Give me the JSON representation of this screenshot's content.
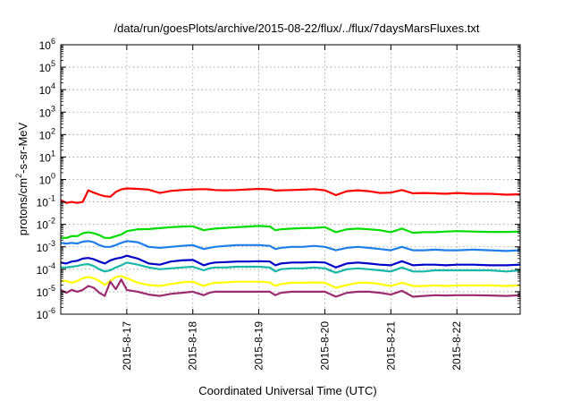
{
  "chart_data": {
    "type": "line",
    "title": "/data/run/goesPlots/archive/2015-08-22/flux/../flux/7daysMarsFluxes.txt",
    "xlabel": "Coordinated Universal Time (UTC)",
    "ylabel_main": "protons/cm",
    "ylabel_sup": "2",
    "ylabel_tail": "-s-sr-MeV",
    "yscale": "log",
    "ylim": [
      1e-06,
      1000000.0
    ],
    "y_ticks": [
      {
        "mantissa": "10",
        "exp": "-6",
        "value": 1e-06
      },
      {
        "mantissa": "10",
        "exp": "-5",
        "value": 1e-05
      },
      {
        "mantissa": "10",
        "exp": "-4",
        "value": 0.0001
      },
      {
        "mantissa": "10",
        "exp": "-3",
        "value": 0.001
      },
      {
        "mantissa": "10",
        "exp": "-2",
        "value": 0.01
      },
      {
        "mantissa": "10",
        "exp": "-1",
        "value": 0.1
      },
      {
        "mantissa": "10",
        "exp": "0",
        "value": 1
      },
      {
        "mantissa": "10",
        "exp": "1",
        "value": 10
      },
      {
        "mantissa": "10",
        "exp": "2",
        "value": 100
      },
      {
        "mantissa": "10",
        "exp": "3",
        "value": 1000
      },
      {
        "mantissa": "10",
        "exp": "4",
        "value": 10000
      },
      {
        "mantissa": "10",
        "exp": "5",
        "value": 100000
      },
      {
        "mantissa": "10",
        "exp": "6",
        "value": 1000000
      }
    ],
    "xlim": [
      "2015-08-16 00:00",
      "2015-08-22 23:00"
    ],
    "x_ticks": [
      "2015-8-17",
      "2015-8-18",
      "2015-8-19",
      "2015-8-20",
      "2015-8-21",
      "2015-8-22"
    ],
    "grid": true,
    "x": [
      "2015-08-16 00:00",
      "2015-08-16 02:00",
      "2015-08-16 04:00",
      "2015-08-16 06:00",
      "2015-08-16 08:00",
      "2015-08-16 10:00",
      "2015-08-16 12:00",
      "2015-08-16 14:00",
      "2015-08-16 16:00",
      "2015-08-16 18:00",
      "2015-08-16 20:00",
      "2015-08-16 22:00",
      "2015-08-17 00:00",
      "2015-08-17 04:00",
      "2015-08-17 08:00",
      "2015-08-17 12:00",
      "2015-08-17 16:00",
      "2015-08-17 20:00",
      "2015-08-18 00:00",
      "2015-08-18 04:00",
      "2015-08-18 06:00",
      "2015-08-18 08:00",
      "2015-08-18 12:00",
      "2015-08-18 16:00",
      "2015-08-18 20:00",
      "2015-08-19 00:00",
      "2015-08-19 04:00",
      "2015-08-19 06:00",
      "2015-08-19 08:00",
      "2015-08-19 12:00",
      "2015-08-19 16:00",
      "2015-08-19 20:00",
      "2015-08-20 00:00",
      "2015-08-20 04:00",
      "2015-08-20 08:00",
      "2015-08-20 12:00",
      "2015-08-20 16:00",
      "2015-08-20 20:00",
      "2015-08-21 00:00",
      "2015-08-21 04:00",
      "2015-08-21 08:00",
      "2015-08-21 12:00",
      "2015-08-21 16:00",
      "2015-08-21 20:00",
      "2015-08-22 00:00",
      "2015-08-22 06:00",
      "2015-08-22 12:00",
      "2015-08-22 18:00",
      "2015-08-22 23:00"
    ],
    "series": [
      {
        "color": "#ff0000",
        "values": [
          0.12,
          0.09,
          0.1,
          0.09,
          0.1,
          0.33,
          0.26,
          0.21,
          0.18,
          0.17,
          0.28,
          0.36,
          0.4,
          0.38,
          0.35,
          0.25,
          0.31,
          0.34,
          0.36,
          0.37,
          0.36,
          0.34,
          0.33,
          0.34,
          0.36,
          0.38,
          0.36,
          0.32,
          0.33,
          0.34,
          0.35,
          0.37,
          0.33,
          0.2,
          0.3,
          0.33,
          0.3,
          0.25,
          0.26,
          0.34,
          0.24,
          0.25,
          0.24,
          0.23,
          0.25,
          0.23,
          0.23,
          0.21,
          0.22
        ]
      },
      {
        "color": "#00dd00",
        "values": [
          0.0025,
          0.0025,
          0.003,
          0.003,
          0.004,
          0.0045,
          0.004,
          0.0033,
          0.0025,
          0.0025,
          0.003,
          0.0035,
          0.005,
          0.006,
          0.0062,
          0.0068,
          0.0075,
          0.008,
          0.0082,
          0.0055,
          0.006,
          0.0065,
          0.007,
          0.0075,
          0.008,
          0.0085,
          0.008,
          0.0055,
          0.006,
          0.0065,
          0.0068,
          0.007,
          0.0075,
          0.0045,
          0.006,
          0.0065,
          0.006,
          0.0055,
          0.0045,
          0.0065,
          0.0042,
          0.0045,
          0.0045,
          0.0048,
          0.005,
          0.0048,
          0.0046,
          0.0046,
          0.0048
        ]
      },
      {
        "color": "#1e7fe8",
        "values": [
          0.0015,
          0.0014,
          0.0015,
          0.0014,
          0.0017,
          0.0018,
          0.0016,
          0.0012,
          0.001,
          0.001,
          0.0012,
          0.0015,
          0.0018,
          0.0016,
          0.001,
          0.0009,
          0.001,
          0.0011,
          0.0012,
          0.0008,
          0.0009,
          0.001,
          0.0011,
          0.0012,
          0.0012,
          0.0012,
          0.0011,
          0.0008,
          0.0009,
          0.001,
          0.001,
          0.0011,
          0.001,
          0.0007,
          0.0009,
          0.001,
          0.0009,
          0.0008,
          0.0007,
          0.001,
          0.0007,
          0.0007,
          0.00075,
          0.0007,
          0.0007,
          0.00075,
          0.0007,
          0.00065,
          0.0007
        ]
      },
      {
        "color": "#0000c8",
        "values": [
          0.0002,
          0.00018,
          0.00022,
          0.00024,
          0.0003,
          0.00032,
          0.00028,
          0.00022,
          0.00018,
          0.00025,
          0.0003,
          0.00033,
          0.0004,
          0.0003,
          0.00018,
          0.00016,
          0.00022,
          0.00025,
          0.00026,
          0.00015,
          0.00018,
          0.0002,
          0.00021,
          0.00022,
          0.00022,
          0.00023,
          0.00022,
          0.00015,
          0.00018,
          0.0002,
          0.0002,
          0.00021,
          0.0002,
          0.00012,
          0.00018,
          0.0002,
          0.00018,
          0.00016,
          0.00015,
          0.00023,
          0.00015,
          0.00016,
          0.00016,
          0.00015,
          0.00016,
          0.00016,
          0.00015,
          0.00015,
          0.00016
        ]
      },
      {
        "color": "#18b8a8",
        "values": [
          0.00012,
          0.00012,
          0.00013,
          0.00014,
          0.00016,
          0.00017,
          0.00014,
          0.0001,
          8e-05,
          9e-05,
          0.00012,
          0.00015,
          0.0002,
          0.00016,
          0.00012,
          0.0001,
          0.00011,
          0.00012,
          0.00013,
          9e-05,
          0.00011,
          0.00012,
          0.00012,
          0.00013,
          0.00013,
          0.00013,
          0.00012,
          8e-05,
          0.0001,
          0.00011,
          0.00011,
          0.00012,
          0.00011,
          7e-05,
          0.0001,
          0.00011,
          0.0001,
          9e-05,
          8e-05,
          0.00012,
          8e-05,
          8e-05,
          9e-05,
          9e-05,
          9e-05,
          9e-05,
          9e-05,
          8e-05,
          9e-05
        ]
      },
      {
        "color": "#ffff00",
        "values": [
          3e-05,
          3e-05,
          2.5e-05,
          3e-05,
          4e-05,
          4.5e-05,
          4e-05,
          3e-05,
          2e-05,
          3e-05,
          4.5e-05,
          5e-05,
          4e-05,
          2.5e-05,
          2e-05,
          1.8e-05,
          2.2e-05,
          2.6e-05,
          2.8e-05,
          1.8e-05,
          2.2e-05,
          2.5e-05,
          2.6e-05,
          2.8e-05,
          2.8e-05,
          2.8e-05,
          2.6e-05,
          1.8e-05,
          2.2e-05,
          2.5e-05,
          2.5e-05,
          2.6e-05,
          2.5e-05,
          1.5e-05,
          2e-05,
          2.5e-05,
          2.5e-05,
          2.2e-05,
          1.8e-05,
          2.5e-05,
          1.8e-05,
          1.8e-05,
          1.9e-05,
          1.8e-05,
          1.9e-05,
          1.9e-05,
          1.9e-05,
          1.8e-05,
          1.9e-05
        ]
      },
      {
        "color": "#9b2c6e",
        "values": [
          1.2e-05,
          9e-06,
          1.2e-05,
          1e-05,
          1.2e-05,
          1.8e-05,
          1.5e-05,
          9e-06,
          6.5e-06,
          2.8e-05,
          1.3e-05,
          3.5e-05,
          1.2e-05,
          1e-05,
          7.5e-06,
          6.5e-06,
          8e-06,
          9e-06,
          1e-05,
          7e-06,
          9e-06,
          1e-05,
          1e-05,
          1e-05,
          1e-05,
          1e-05,
          1e-05,
          7e-06,
          9e-06,
          1e-05,
          1e-05,
          1e-05,
          1e-05,
          6e-06,
          9e-06,
          1e-05,
          1e-05,
          9e-06,
          7.5e-06,
          1.1e-05,
          6e-06,
          6.5e-06,
          7e-06,
          6.8e-06,
          7e-06,
          7e-06,
          6.8e-06,
          6.5e-06,
          7e-06
        ]
      }
    ]
  }
}
